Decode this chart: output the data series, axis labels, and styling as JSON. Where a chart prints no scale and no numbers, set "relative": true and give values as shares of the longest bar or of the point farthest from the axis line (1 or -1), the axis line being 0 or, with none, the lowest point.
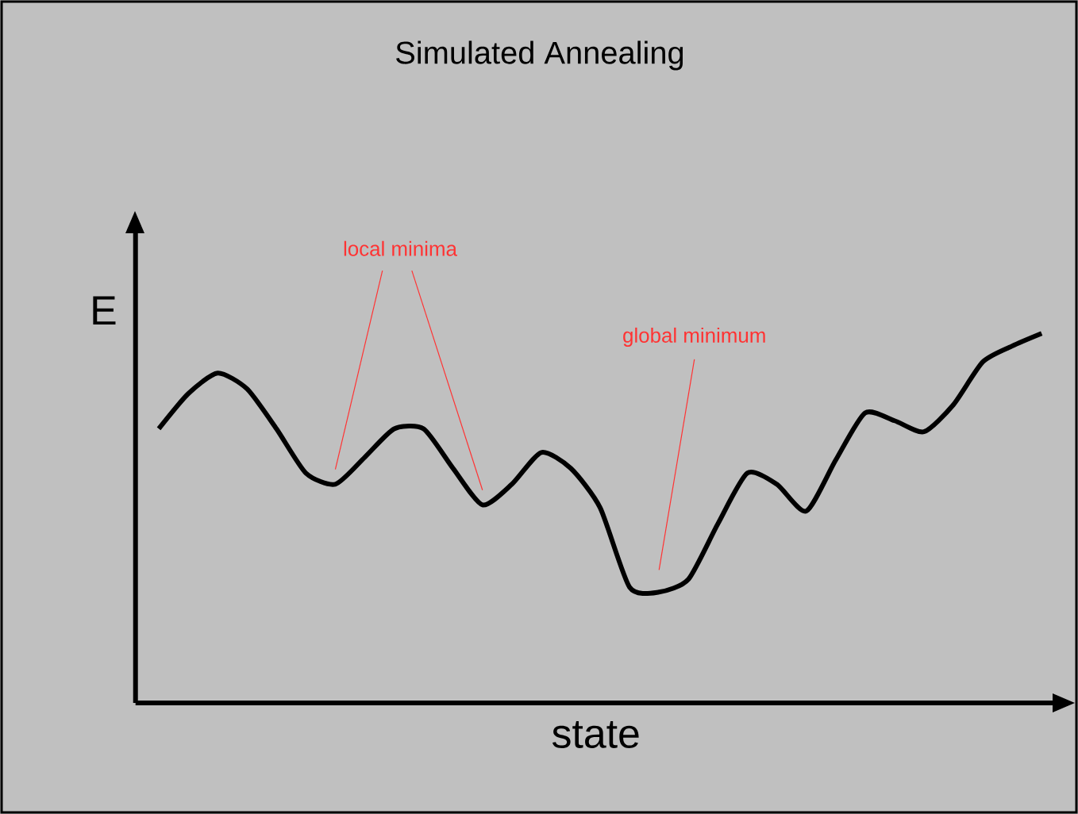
{
  "chart_data": {
    "type": "line",
    "title": "Simulated Annealing",
    "xlabel": "state",
    "ylabel": "E",
    "relative": true,
    "categories": [
      null,
      null,
      null,
      null,
      null,
      null,
      null,
      null,
      null,
      null,
      null,
      null,
      null,
      null,
      null,
      null,
      null,
      null,
      null,
      null,
      null,
      null,
      null,
      null,
      null,
      null,
      null,
      null,
      null,
      null,
      null
    ],
    "values": [
      0.742,
      0.837,
      0.893,
      0.85,
      0.742,
      0.622,
      0.592,
      0.665,
      0.742,
      0.742,
      0.635,
      0.536,
      0.592,
      0.678,
      0.635,
      0.528,
      0.313,
      0.3,
      0.335,
      0.485,
      0.622,
      0.592,
      0.519,
      0.657,
      0.785,
      0.764,
      0.734,
      0.807,
      0.923,
      0.966,
      1.0
    ],
    "color": "#000000",
    "annotations": [
      "local minima",
      "global minimum"
    ]
  }
}
